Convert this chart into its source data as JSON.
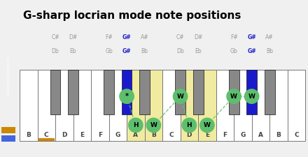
{
  "title": "G-sharp locrian mode note positions",
  "white_keys": [
    "B",
    "C",
    "D",
    "E",
    "F",
    "G",
    "A",
    "B",
    "C",
    "D",
    "E",
    "F",
    "G",
    "A",
    "B",
    "C"
  ],
  "num_white": 16,
  "bk_after_white": [
    1,
    2,
    4,
    5,
    6,
    8,
    9,
    11,
    12,
    13
  ],
  "bk_top_labels": [
    "C#",
    "D#",
    "F#",
    "G#",
    "A#",
    "C#",
    "D#",
    "F#",
    "G#",
    "A#"
  ],
  "bk_bot_labels": [
    "Db",
    "Eb",
    "Gb",
    "G#",
    "Bb",
    "Db",
    "Eb",
    "Gb",
    "G#",
    "Bb"
  ],
  "blue_bk_indices": [
    3,
    8
  ],
  "yellow_white_indices": [
    6,
    7,
    9,
    10
  ],
  "orange_underline_white_idx": 1,
  "circles": [
    {
      "type": "black",
      "idx": 3,
      "label": "*"
    },
    {
      "type": "white",
      "idx": 6,
      "label": "H"
    },
    {
      "type": "white",
      "idx": 7,
      "label": "W"
    },
    {
      "type": "black",
      "idx": 5,
      "label": "W"
    },
    {
      "type": "white",
      "idx": 9,
      "label": "H"
    },
    {
      "type": "white",
      "idx": 10,
      "label": "W"
    },
    {
      "type": "black",
      "idx": 7,
      "label": "W"
    },
    {
      "type": "black",
      "idx": 8,
      "label": "W"
    }
  ],
  "dashed_lines": [
    [
      0,
      1
    ],
    [
      2,
      3
    ],
    [
      3,
      4
    ],
    [
      5,
      6
    ],
    [
      6,
      7
    ]
  ],
  "colors": {
    "green": "#5dbe6e",
    "blue_key": "#1a1acc",
    "yellow_key": "#f0eba0",
    "gray_key": "#888888",
    "white_key": "#ffffff",
    "sidebar_bg": "#1a1a1a",
    "orange": "#cc8800",
    "blue_sq": "#4466dd",
    "bg": "#f0f0f0",
    "border": "#888888",
    "text_gray": "#999999",
    "text_blue": "#2222cc",
    "text_dark": "#444444"
  }
}
